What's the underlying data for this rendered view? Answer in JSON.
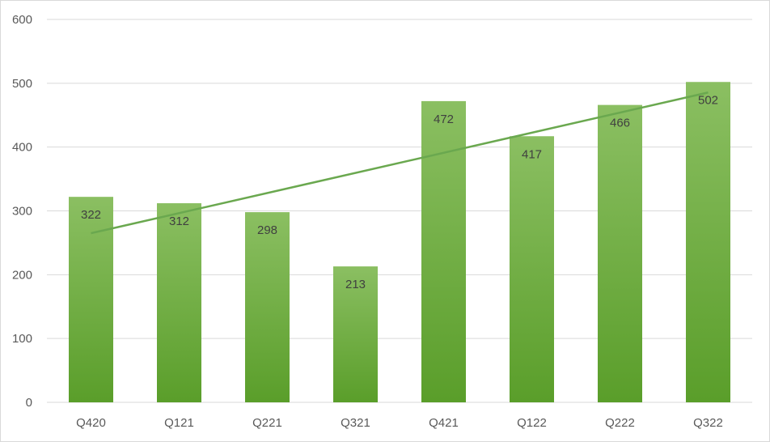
{
  "chart_data": {
    "type": "bar",
    "categories": [
      "Q420",
      "Q121",
      "Q221",
      "Q321",
      "Q421",
      "Q122",
      "Q222",
      "Q322"
    ],
    "values": [
      322,
      312,
      298,
      213,
      472,
      417,
      466,
      502
    ],
    "title": "",
    "xlabel": "",
    "ylabel": "",
    "ylim": [
      0,
      600
    ],
    "yticks": [
      0,
      100,
      200,
      300,
      400,
      500,
      600
    ],
    "grid": true,
    "legend": "none",
    "data_labels": true,
    "trendline": {
      "type": "linear"
    },
    "colors": {
      "bar_top": "#8bbf62",
      "bar_bottom": "#5a9e2a",
      "trendline": "#6aa84f",
      "gridline": "#d9d9d9",
      "tick_text": "#595959",
      "data_label_text": "#404040"
    }
  }
}
